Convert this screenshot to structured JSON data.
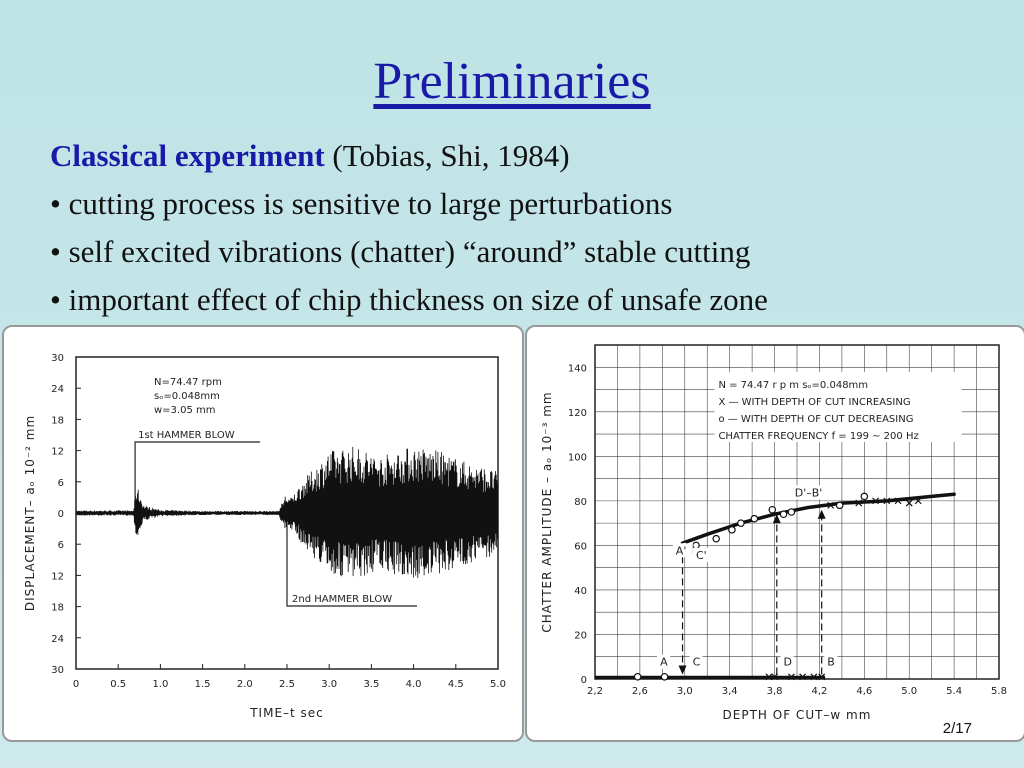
{
  "slide": {
    "title": "Preliminaries",
    "heading_bold": "Classical experiment",
    "heading_rest": " (Tobias, Shi, 1984)",
    "bullets": [
      "• cutting process is sensitive to large perturbations",
      "• self excited vibrations (chatter) “around” stable cutting",
      "• important effect of chip thickness on size of unsafe zone"
    ],
    "page_number": "2/17"
  },
  "chart_data": [
    {
      "type": "line",
      "xlabel": "TIME–t sec",
      "ylabel": "DISPLACEMENT– aₒ 10⁻² mm",
      "xlim": [
        0,
        5.0
      ],
      "ylim": [
        -30,
        30
      ],
      "x_ticks": [
        "0",
        "0.5",
        "1.0",
        "1.5",
        "2.0",
        "2.5",
        "3.0",
        "3.5",
        "4.0",
        "4.5",
        "5.0"
      ],
      "y_ticks": [
        "30",
        "24",
        "18",
        "12",
        "6",
        "0",
        "6",
        "12",
        "18",
        "24",
        "30"
      ],
      "notes": [
        "N=74.47 rpm",
        "sₒ=0.048mm",
        "w=3.05 mm"
      ],
      "annotations": [
        {
          "text": "1st  HAMMER  BLOW",
          "x": 0.7
        },
        {
          "text": "2nd  HAMMER  BLOW",
          "x": 2.5
        }
      ],
      "envelope": {
        "x": [
          0,
          0.68,
          0.72,
          0.8,
          1.0,
          1.5,
          2.0,
          2.4,
          2.48,
          2.55,
          2.7,
          2.9,
          3.0,
          3.3,
          3.6,
          4.0,
          4.3,
          4.6,
          5.0
        ],
        "amplitude": [
          0.5,
          0.5,
          5.5,
          1.5,
          0.6,
          0.4,
          0.4,
          0.4,
          3.5,
          3.0,
          6.5,
          10,
          12,
          13,
          11,
          13,
          12,
          10,
          8
        ]
      }
    },
    {
      "type": "scatter",
      "xlabel": "DEPTH  OF  CUT–w  mm",
      "ylabel": "CHATTER  AMPLITUDE – aₒ  10⁻³ mm",
      "xlim": [
        2.2,
        5.8
      ],
      "ylim": [
        0,
        150
      ],
      "x_ticks": [
        "2,2",
        "2,6",
        "3,0",
        "3,4",
        "3,8",
        "4,2",
        "4,6",
        "5.0",
        "5.4",
        "5.8"
      ],
      "y_ticks": [
        "0",
        "20",
        "40",
        "60",
        "80",
        "100",
        "120",
        "140"
      ],
      "notes": [
        "N = 74.47  r p m     sₒ=0.048mm",
        "X — WITH  DEPTH OF CUT INCREASING",
        "o — WITH  DEPTH OF CUT DECREASING",
        "CHATTER  FREQUENCY  f = 199 ∼ 200 Hz"
      ],
      "point_labels": [
        {
          "text": "A'",
          "x": 2.92,
          "y": 56
        },
        {
          "text": "C'",
          "x": 3.1,
          "y": 54
        },
        {
          "text": "D'–B'",
          "x": 3.98,
          "y": 82
        },
        {
          "text": "A",
          "x": 2.78,
          "y": 6
        },
        {
          "text": "C",
          "x": 3.07,
          "y": 6
        },
        {
          "text": "D",
          "x": 3.88,
          "y": 6
        },
        {
          "text": "B",
          "x": 4.27,
          "y": 6
        }
      ],
      "series": [
        {
          "name": "X — WITH  DEPTH OF CUT INCREASING",
          "marker": "x",
          "x": [
            3.75,
            3.8,
            3.95,
            4.05,
            4.15,
            4.22,
            4.3,
            4.55,
            4.7,
            4.8,
            4.9,
            5.0,
            5.08
          ],
          "y": [
            1,
            1,
            1,
            1,
            1,
            1,
            78,
            79,
            80,
            80,
            80,
            79,
            80
          ]
        },
        {
          "name": "o — WITH  DEPTH OF CUT DECREASING",
          "marker": "o",
          "x": [
            2.58,
            2.82,
            3.0,
            3.05,
            3.1,
            3.28,
            3.42,
            3.5,
            3.62,
            3.78,
            3.88,
            3.95,
            4.38,
            4.6
          ],
          "y": [
            1,
            1,
            60,
            58,
            60,
            63,
            67,
            70,
            72,
            76,
            74,
            75,
            78,
            82
          ]
        },
        {
          "name": "stable-branch",
          "marker": "line",
          "x": [
            2.98,
            3.2,
            3.5,
            3.8,
            4.1,
            4.4,
            4.8,
            5.2,
            5.4
          ],
          "y": [
            61,
            65,
            70,
            74,
            77,
            79,
            80,
            82,
            83
          ]
        }
      ],
      "vertical_transitions": [
        {
          "x": 2.98,
          "from": 60,
          "to": 2,
          "dir": "down"
        },
        {
          "x": 3.82,
          "from": 2,
          "to": 74,
          "dir": "up"
        },
        {
          "x": 4.22,
          "from": 2,
          "to": 76,
          "dir": "up"
        }
      ]
    }
  ]
}
